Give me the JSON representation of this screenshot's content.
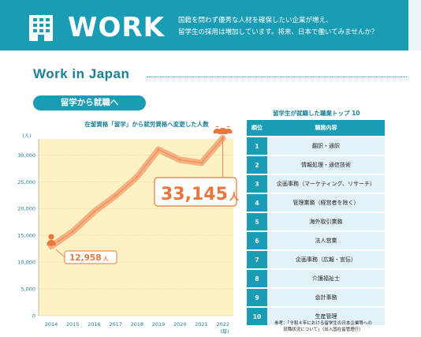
{
  "header": {
    "title": "WORK",
    "desc_line1": "国籍を問わず優秀な人材を確保したい企業が増え、",
    "desc_line2": "留学生の採用は増加しています。将来、日本で働いてみませんか？"
  },
  "section": {
    "title": "Work in Japan",
    "pill": "留学から就職へ"
  },
  "chart": {
    "title": "在留資格「留学」から就労資格へ変更した人数"
  },
  "chart_data": {
    "type": "line",
    "title": "在留資格「留学」から就労資格へ変更した人数",
    "x": [
      "2014",
      "2015",
      "2016",
      "2017",
      "2018",
      "2019",
      "2020",
      "2021",
      "2022"
    ],
    "series": [
      {
        "values": [
          12958,
          15700,
          19400,
          22400,
          25900,
          31000,
          29100,
          28500,
          33145
        ]
      }
    ],
    "y_unit": "(人)",
    "x_unit": "(年)",
    "ylim": [
      0,
      30000
    ],
    "yticks": [
      "0",
      "5,000",
      "10,000",
      "15,000",
      "20,000",
      "25,000",
      "30,000"
    ],
    "grid": true,
    "annotations": {
      "start_value": "12,958",
      "start_unit": "人",
      "end_value": "33,145",
      "end_unit": "人"
    },
    "colors": {
      "line": "#f08a4b",
      "line_fill": "#f4b183",
      "plot_bg": "#fdf2c4",
      "accent": "#e9763d"
    }
  },
  "table": {
    "title": "留学生が就職した職業トップ 10",
    "headers": [
      "順位",
      "職務内容"
    ],
    "rows": [
      {
        "rank": "1",
        "job": "翻訳・通訳"
      },
      {
        "rank": "2",
        "job": "情報処理・通信技術"
      },
      {
        "rank": "3",
        "job": "企画事務（マーケティング、リサーチ）"
      },
      {
        "rank": "4",
        "job": "管理業務（経営者を除く）"
      },
      {
        "rank": "5",
        "job": "海外取引業務"
      },
      {
        "rank": "6",
        "job": "法人営業"
      },
      {
        "rank": "7",
        "job": "企画事務（広報・宣伝）"
      },
      {
        "rank": "8",
        "job": "介護福祉士"
      },
      {
        "rank": "9",
        "job": "会計事務"
      },
      {
        "rank": "10",
        "job": "生産管理"
      }
    ],
    "note_line1": "参考：「令和４年における留学生の日本企業等への",
    "note_line2": "就職状況について」（出入国在留管理庁）"
  },
  "icons": {
    "header": "building-icon",
    "chart_end": "people-icon",
    "chart_start": "person-icon"
  }
}
